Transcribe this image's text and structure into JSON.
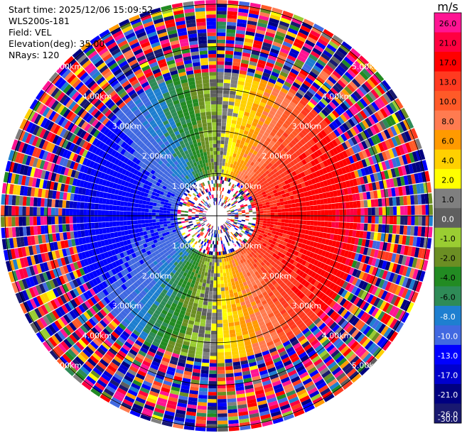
{
  "header": {
    "start_time": "Start time: 2025/12/06 15:09:52",
    "instrument": "WLS200s-181",
    "field": "Field: VEL",
    "elevation": "Elevation(deg): 35.00",
    "nrays": "NRays: 120"
  },
  "colorbar": {
    "unit": "m/s",
    "ticks": [
      "26.0",
      "21.0",
      "17.0",
      "13.0",
      "10.0",
      "8.0",
      "6.0",
      "4.0",
      "2.0",
      "1.0",
      "0.0",
      "-1.0",
      "-2.0",
      "-4.0",
      "-6.0",
      "-8.0",
      "-10.0",
      "-13.0",
      "-17.0",
      "-21.0",
      "-26.0",
      "-30.0"
    ],
    "colors": [
      "#ff1493",
      "#ff0040",
      "#ff0000",
      "#ff3a20",
      "#ff5a28",
      "#ff7b50",
      "#ff9a00",
      "#ffd000",
      "#ffff00",
      "#7f7f7f",
      "#5f5f5f",
      "#9acd32",
      "#6b8e23",
      "#228b22",
      "#2e8b57",
      "#1e7fd0",
      "#4169e1",
      "#0000ff",
      "#0000cd",
      "#000080",
      "#191970"
    ]
  },
  "chart_data": {
    "type": "ppi",
    "field": "VEL",
    "units": "m/s",
    "nrays": 120,
    "elevation_deg": 35.0,
    "range_rings_km": [
      1,
      2,
      3,
      4,
      5
    ],
    "ring_labels": [
      "1.00km",
      "2.00km",
      "3.00km",
      "4.00km",
      "5.00km"
    ],
    "valid_range_km": 3.4,
    "max_range_km": 5.1,
    "vmin": -30.0,
    "vmax": 26.0,
    "wind_pattern": "negative velocities (toward) on western half, positive (away) on eastern half"
  }
}
